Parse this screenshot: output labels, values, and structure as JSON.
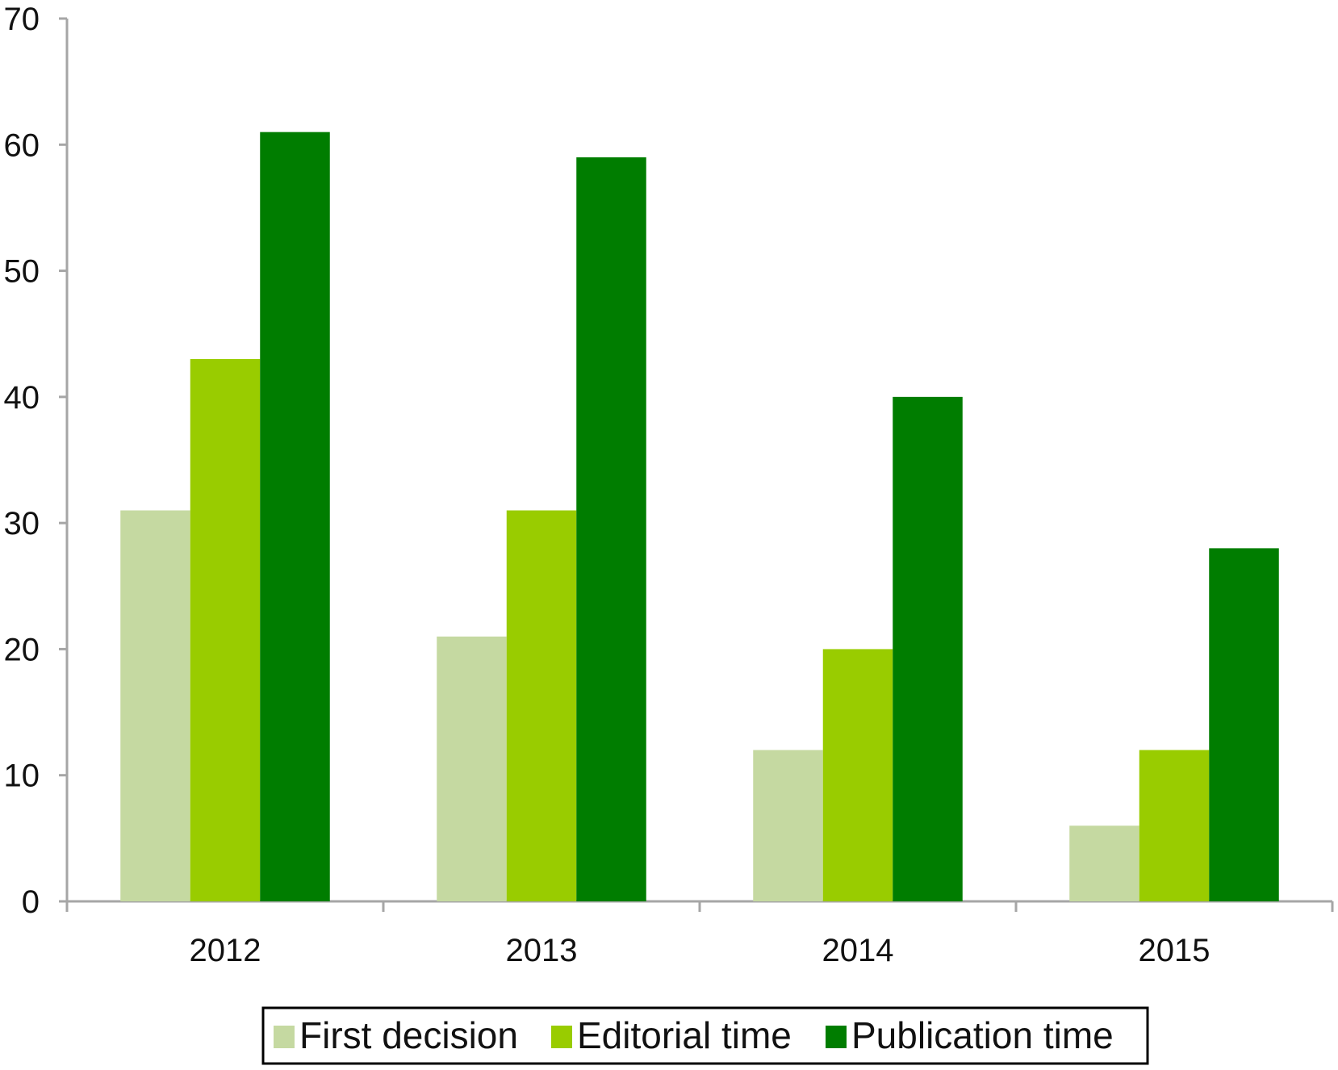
{
  "chart_data": {
    "type": "bar",
    "title": "",
    "xlabel": "",
    "ylabel": "",
    "ylim": [
      0,
      70
    ],
    "yticks": [
      0,
      10,
      20,
      30,
      40,
      50,
      60,
      70
    ],
    "grid": false,
    "legend_position": "bottom",
    "categories": [
      "2012",
      "2013",
      "2014",
      "2015"
    ],
    "series": [
      {
        "name": "First decision",
        "color": "#c5d9a1",
        "values": [
          31,
          21,
          12,
          6
        ]
      },
      {
        "name": "Editorial time",
        "color": "#99cc00",
        "values": [
          43,
          31,
          20,
          12
        ]
      },
      {
        "name": "Publication time",
        "color": "#007d00",
        "values": [
          61,
          59,
          40,
          28
        ]
      }
    ]
  }
}
